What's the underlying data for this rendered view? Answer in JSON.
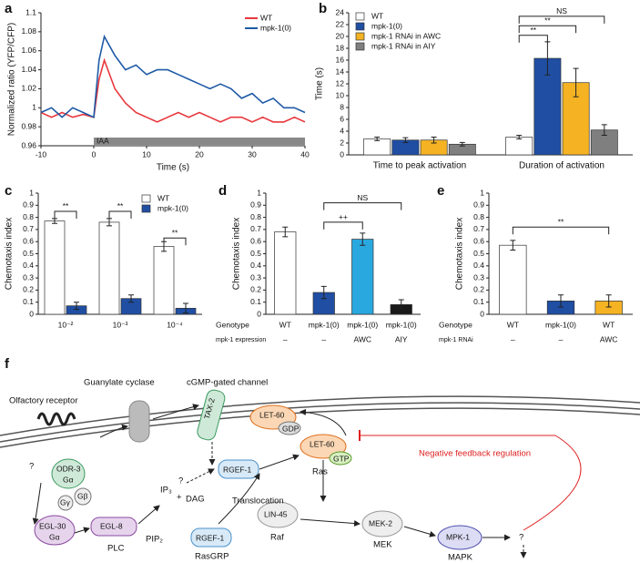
{
  "chart_data": [
    {
      "type": "line",
      "panel": "a",
      "xlabel": "Time (s)",
      "ylabel": "Normalized ratio (YFP/CFP)",
      "xlim": [
        -10,
        40
      ],
      "xticks": [
        -10,
        0,
        10,
        20,
        30,
        40
      ],
      "ylim": [
        0.96,
        1.1
      ],
      "yticks": [
        0.96,
        0.98,
        1,
        1.02,
        1.04,
        1.06,
        1.08,
        1.1
      ],
      "legend": "upper right",
      "x": [
        -10,
        -8,
        -6,
        -4,
        -2,
        0,
        1,
        2,
        4,
        6,
        8,
        10,
        12,
        14,
        16,
        18,
        20,
        22,
        24,
        26,
        28,
        30,
        32,
        34,
        36,
        38,
        40
      ],
      "series": [
        {
          "name": "WT",
          "color": "#e8383d",
          "values": [
            0.995,
            0.99,
            0.995,
            0.99,
            0.993,
            0.99,
            1.03,
            1.05,
            1.02,
            1.005,
            0.995,
            0.99,
            0.985,
            0.99,
            0.995,
            0.99,
            0.995,
            0.99,
            0.985,
            0.99,
            0.99,
            0.985,
            0.99,
            0.985,
            0.985,
            0.99,
            0.985
          ]
        },
        {
          "name": "mpk-1(0)",
          "color": "#1f5aa6",
          "values": [
            0.995,
            1.0,
            0.99,
            1.0,
            0.995,
            0.99,
            1.05,
            1.075,
            1.055,
            1.04,
            1.045,
            1.035,
            1.04,
            1.04,
            1.035,
            1.03,
            1.025,
            1.02,
            1.025,
            1.02,
            1.01,
            1.015,
            1.005,
            1.01,
            1.0,
            1.0,
            0.995
          ]
        }
      ],
      "annotations": [
        {
          "text": "IAA",
          "span": [
            0,
            40
          ]
        }
      ]
    },
    {
      "type": "bar",
      "panel": "b",
      "ylabel": "Time (s)",
      "ylim": [
        0,
        24
      ],
      "yticks": [
        0,
        2,
        4,
        6,
        8,
        10,
        12,
        14,
        16,
        18,
        20,
        22,
        24
      ],
      "legend": "upper left",
      "categories": [
        "Time to peak activation",
        "Duration of activation"
      ],
      "series": [
        {
          "name": "WT",
          "color": "#ffffff",
          "values": [
            2.7,
            3.0
          ],
          "errors": [
            0.3,
            0.3
          ]
        },
        {
          "name": "mpk-1(0)",
          "color": "#1f4ea3",
          "values": [
            2.5,
            16.3
          ],
          "errors": [
            0.4,
            2.8
          ]
        },
        {
          "name": "mpk-1 RNAi in AWC",
          "color": "#f5b323",
          "values": [
            2.5,
            12.2
          ],
          "errors": [
            0.5,
            2.4
          ]
        },
        {
          "name": "mpk-1 RNAi in AIY",
          "color": "#7f7f7f",
          "values": [
            1.8,
            4.2
          ],
          "errors": [
            0.3,
            0.9
          ]
        }
      ],
      "annotations": [
        {
          "text": "NS"
        },
        {
          "text": "**"
        },
        {
          "text": "**"
        }
      ]
    },
    {
      "type": "bar",
      "panel": "c",
      "ylabel": "Chemotaxis index",
      "ylim": [
        0,
        1
      ],
      "yticks": [
        0,
        0.1,
        0.2,
        0.3,
        0.4,
        0.5,
        0.6,
        0.7,
        0.8,
        0.9,
        1
      ],
      "legend": "upper right",
      "categories": [
        "10⁻²",
        "10⁻³",
        "10⁻⁴"
      ],
      "series": [
        {
          "name": "WT",
          "color": "#ffffff",
          "values": [
            0.77,
            0.76,
            0.56
          ],
          "errors": [
            0.02,
            0.03,
            0.04
          ]
        },
        {
          "name": "mpk-1(0)",
          "color": "#1f4ea3",
          "values": [
            0.07,
            0.13,
            0.05
          ],
          "errors": [
            0.03,
            0.03,
            0.04
          ]
        }
      ],
      "annotations": [
        {
          "text": "**"
        },
        {
          "text": "**"
        },
        {
          "text": "**"
        }
      ]
    },
    {
      "type": "bar",
      "panel": "d",
      "ylabel": "Chemotaxis index",
      "ylim": [
        0,
        1
      ],
      "yticks": [
        0,
        0.1,
        0.2,
        0.3,
        0.4,
        0.5,
        0.6,
        0.7,
        0.8,
        0.9,
        1
      ],
      "category_label": "Genotype",
      "categories": [
        "WT",
        "mpk-1(0)",
        "mpk-1(0)",
        "mpk-1(0)"
      ],
      "rows": [
        {
          "label": "mpk-1 expression",
          "cells": [
            "–",
            "–",
            "AWC",
            "AIY"
          ]
        }
      ],
      "series": [
        {
          "colors": [
            "#ffffff",
            "#1f4ea3",
            "#29a8e0",
            "#1a1a1a"
          ],
          "values": [
            0.68,
            0.18,
            0.62,
            0.08
          ],
          "errors": [
            0.04,
            0.05,
            0.05,
            0.04
          ]
        }
      ],
      "annotations": [
        {
          "text": "NS"
        },
        {
          "text": "++"
        }
      ]
    },
    {
      "type": "bar",
      "panel": "e",
      "ylabel": "Chemotaxis index",
      "ylim": [
        0,
        1
      ],
      "yticks": [
        0,
        0.1,
        0.2,
        0.3,
        0.4,
        0.5,
        0.6,
        0.7,
        0.8,
        0.9,
        1
      ],
      "category_label": "Genotype",
      "categories": [
        "WT",
        "mpk-1(0)",
        "WT"
      ],
      "rows": [
        {
          "label": "mpk-1 RNAi",
          "cells": [
            "–",
            "–",
            "AWC"
          ]
        }
      ],
      "series": [
        {
          "colors": [
            "#ffffff",
            "#1f4ea3",
            "#f5b323"
          ],
          "values": [
            0.57,
            0.11,
            0.11
          ],
          "errors": [
            0.04,
            0.05,
            0.05
          ]
        }
      ],
      "annotations": [
        {
          "text": "**"
        }
      ]
    }
  ],
  "diagram": {
    "panel": "f",
    "nodes": [
      {
        "label": "Olfactory receptor"
      },
      {
        "label": "Guanylate cyclase"
      },
      {
        "label": "cGMP-gated channel"
      },
      {
        "label": "TAX-2"
      },
      {
        "label": "ODR-3"
      },
      {
        "label": "Gα"
      },
      {
        "label": "Gγ"
      },
      {
        "label": "Gβ"
      },
      {
        "label": "?"
      },
      {
        "label": "EGL-30"
      },
      {
        "label": "Gα"
      },
      {
        "label": "EGL-8"
      },
      {
        "label": "PLC"
      },
      {
        "label": "IP₃"
      },
      {
        "label": "+"
      },
      {
        "label": "DAG"
      },
      {
        "label": "PIP₂"
      },
      {
        "label": "Translocation"
      },
      {
        "label": "RGEF-1"
      },
      {
        "label": "RGEF-1"
      },
      {
        "label": "RasGRP"
      },
      {
        "label": "?"
      },
      {
        "label": "LET-60"
      },
      {
        "label": "GDP"
      },
      {
        "label": "LET-60"
      },
      {
        "label": "GTP"
      },
      {
        "label": "Ras"
      },
      {
        "label": "LIN-45"
      },
      {
        "label": "Raf"
      },
      {
        "label": "MEK-2"
      },
      {
        "label": "MEK"
      },
      {
        "label": "MPK-1"
      },
      {
        "label": "MAPK"
      },
      {
        "label": "?"
      },
      {
        "label": "Negative feedback regulation"
      }
    ]
  }
}
